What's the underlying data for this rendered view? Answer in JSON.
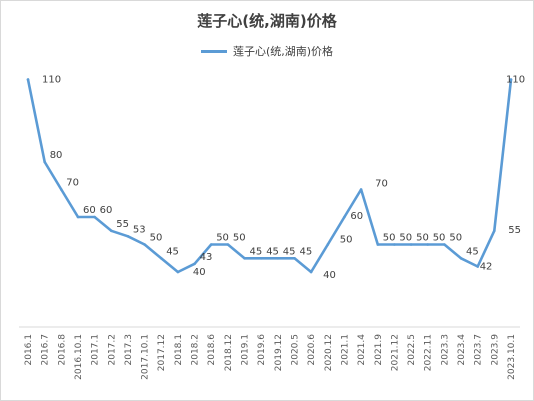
{
  "chart_data": {
    "type": "line",
    "title": "莲子心(统,湖南)价格",
    "legend_position": "top",
    "grid": false,
    "line_color": "#5b9bd5",
    "ylim": [
      20,
      120
    ],
    "x": [
      "2016.1",
      "2016.7",
      "2016.8",
      "2016.10.1",
      "2017.1",
      "2017.2",
      "2017.3",
      "2017.10.1",
      "2017.12",
      "2018.1",
      "2018.2",
      "2018.6",
      "2018.12",
      "2019.1",
      "2019.6",
      "2019.12",
      "2020.5",
      "2020.6",
      "2020.12",
      "2021.1",
      "2021.4",
      "2021.9",
      "2021.12",
      "2022.5",
      "2022.11",
      "2023.3",
      "2023.4",
      "2023.7",
      "2023.9",
      "2023.10.1"
    ],
    "series": [
      {
        "name": "莲子心(统,湖南)价格",
        "values": [
          110,
          80,
          70,
          60,
          60,
          55,
          53,
          50,
          45,
          40,
          43,
          50,
          50,
          45,
          45,
          45,
          45,
          40,
          50,
          60,
          70,
          50,
          50,
          50,
          50,
          50,
          45,
          42,
          55,
          110
        ]
      }
    ],
    "x_tick_labels": [
      "2016.1",
      "2016.7",
      "2016.8",
      "2016.10.1",
      "2017.1",
      "2017.2",
      "2017.3",
      "2017.10.1",
      "2017.12",
      "2018.1",
      "2018.2",
      "2018.6",
      "2018.12",
      "2019.1",
      "2019.6",
      "2019.12",
      "2020.5",
      "2020.6",
      "2020.12",
      "2021.1",
      "2021.4",
      "2021.9",
      "2021.12",
      "2022.5",
      "2022.11",
      "2023.3",
      "2023.4",
      "2023.7",
      "2023.9",
      "2023.10.1"
    ]
  }
}
